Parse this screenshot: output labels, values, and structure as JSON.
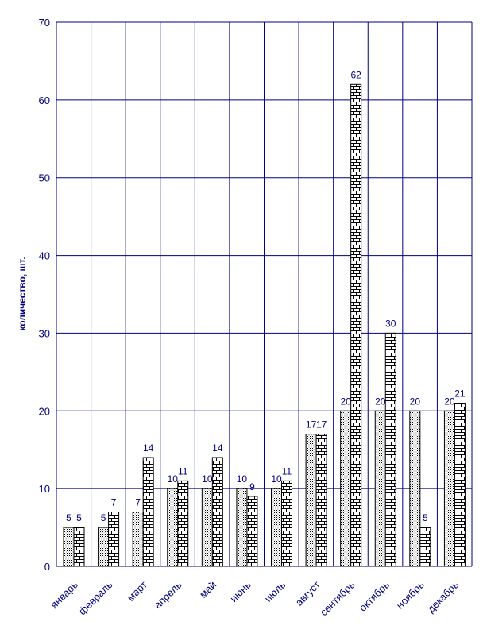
{
  "chart_data": {
    "type": "bar",
    "title": "",
    "xlabel": "",
    "ylabel": "количество, шт.",
    "ylim": [
      0,
      70
    ],
    "yticks": [
      0,
      10,
      20,
      30,
      40,
      50,
      60,
      70
    ],
    "grid": true,
    "legend": "none",
    "categories": [
      "январь",
      "февраль",
      "март",
      "апрель",
      "май",
      "июнь",
      "июль",
      "август",
      "сентябрь",
      "октябрь",
      "ноябрь",
      "декабрь"
    ],
    "series": [
      {
        "values": [
          5,
          5,
          7,
          10,
          10,
          10,
          10,
          17,
          20,
          20,
          20,
          20
        ],
        "pattern": "dots"
      },
      {
        "values": [
          5,
          7,
          14,
          11,
          14,
          9,
          11,
          17,
          62,
          30,
          5,
          21
        ],
        "pattern": "bricks"
      }
    ],
    "colors": {
      "axis": "#000080",
      "text": "#000080",
      "bar_outline": "#000000"
    }
  }
}
